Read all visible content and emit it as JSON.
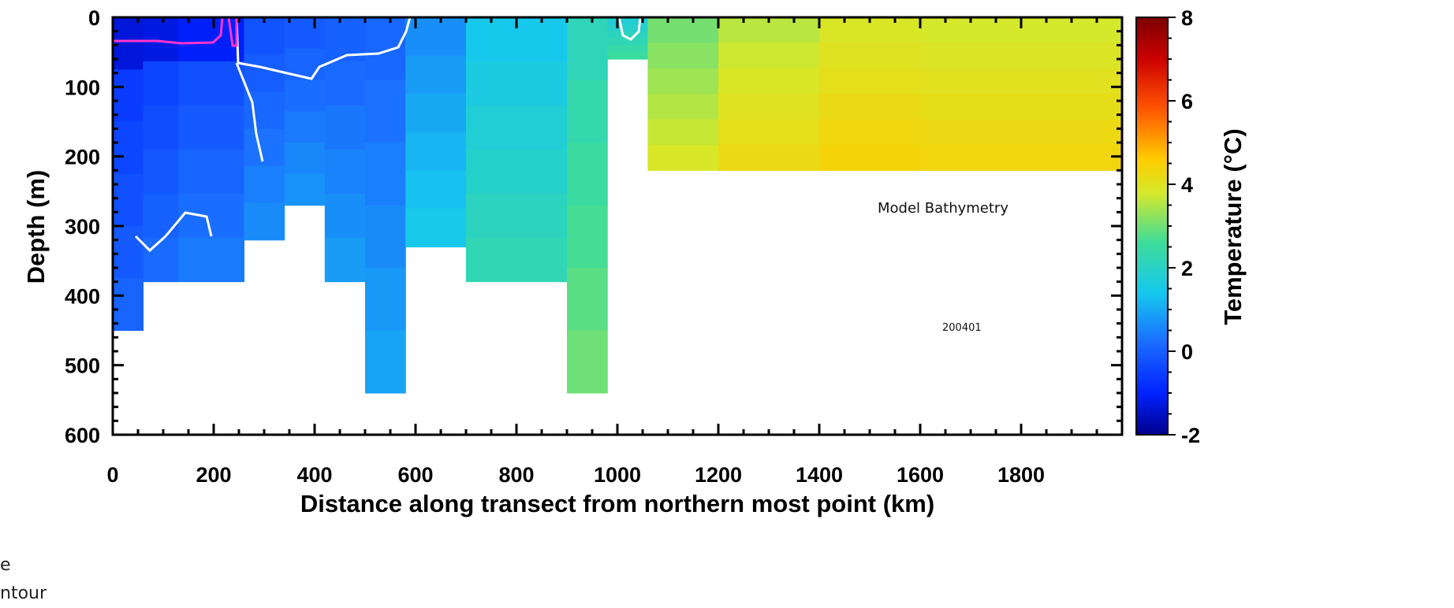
{
  "chart_data": {
    "type": "heatmap",
    "xlabel": "Distance along transect from northern most point (km)",
    "ylabel": "Depth (m)",
    "xlim": [
      0,
      2000
    ],
    "ylim": [
      600,
      0
    ],
    "x_ticks": [
      "0",
      "200",
      "400",
      "600",
      "800",
      "1000",
      "1200",
      "1400",
      "1600",
      "1800"
    ],
    "y_ticks": [
      "0",
      "100",
      "200",
      "300",
      "400",
      "500",
      "600"
    ],
    "colorbar": {
      "label": "Temperature (°C)",
      "range": [
        -2,
        8
      ],
      "ticks": [
        "8",
        "6",
        "4",
        "2",
        "0",
        "-2"
      ],
      "colormap": [
        "#00008b",
        "#0022ff",
        "#1a6cff",
        "#16c8ee",
        "#3ddc9a",
        "#d6e82a",
        "#ffcc00",
        "#ff5500",
        "#cc0000",
        "#7a0000"
      ]
    },
    "annotations": [
      "Model Bathymetry",
      "200401"
    ],
    "partial_text": [
      "e",
      "ntour"
    ],
    "sections": [
      {
        "x": [
          0,
          60
        ],
        "bottom": 450,
        "temperature": -0.5
      },
      {
        "x": [
          60,
          130
        ],
        "bottom": 380,
        "temperature": -0.4
      },
      {
        "x": [
          130,
          260
        ],
        "bottom": 380,
        "temperature": -0.2
      },
      {
        "x": [
          260,
          340
        ],
        "bottom": 320,
        "temperature": 0.0
      },
      {
        "x": [
          340,
          420
        ],
        "bottom": 270,
        "temperature": 0.1
      },
      {
        "x": [
          420,
          500
        ],
        "bottom": 380,
        "temperature": 0.2
      },
      {
        "x": [
          500,
          580
        ],
        "bottom": 540,
        "temperature": 0.3
      },
      {
        "x": [
          580,
          700
        ],
        "bottom": 330,
        "temperature": 0.8
      },
      {
        "x": [
          700,
          900
        ],
        "bottom": 380,
        "temperature": 1.5
      },
      {
        "x": [
          900,
          980
        ],
        "bottom": 540,
        "temperature": 2.2
      },
      {
        "x": [
          980,
          1060
        ],
        "bottom": 60,
        "temperature": 1.8
      },
      {
        "x": [
          1060,
          1200
        ],
        "bottom": 220,
        "temperature": 3.0
      },
      {
        "x": [
          1200,
          1400
        ],
        "bottom": 220,
        "temperature": 3.5
      },
      {
        "x": [
          1400,
          1600
        ],
        "bottom": 220,
        "temperature": 3.8
      },
      {
        "x": [
          1600,
          2000
        ],
        "bottom": 220,
        "temperature": 3.7
      }
    ],
    "grid": false
  }
}
